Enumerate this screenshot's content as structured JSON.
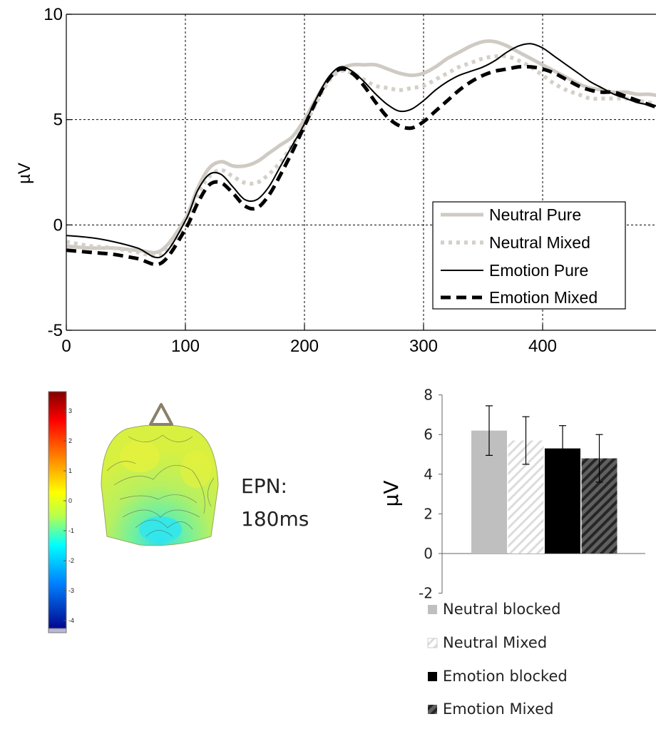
{
  "chart_data": [
    {
      "type": "line",
      "title": "",
      "xlabel": "",
      "ylabel": "µV",
      "xlim": [
        0,
        500
      ],
      "ylim": [
        -5,
        10
      ],
      "xticks": [
        0,
        100,
        200,
        300,
        400
      ],
      "yticks": [
        -5,
        0,
        5,
        10
      ],
      "grid": true,
      "legend_position": "bottom-right",
      "series": [
        {
          "name": "Neutral Pure",
          "color": "#cfcac3",
          "style": "thick-solid",
          "x": [
            0,
            20,
            40,
            60,
            80,
            100,
            110,
            120,
            130,
            140,
            150,
            160,
            170,
            180,
            190,
            200,
            210,
            220,
            230,
            240,
            250,
            260,
            270,
            280,
            290,
            300,
            310,
            320,
            330,
            340,
            350,
            360,
            370,
            380,
            390,
            400,
            410,
            420,
            430,
            440,
            450,
            460,
            470,
            480,
            490,
            500
          ],
          "y": [
            -1.0,
            -1.1,
            -1.1,
            -1.2,
            -1.2,
            0.3,
            1.7,
            2.7,
            3.0,
            2.8,
            2.8,
            3.0,
            3.4,
            3.8,
            4.2,
            5.0,
            6.0,
            6.9,
            7.4,
            7.6,
            7.6,
            7.6,
            7.4,
            7.2,
            7.1,
            7.2,
            7.5,
            7.9,
            8.2,
            8.5,
            8.7,
            8.7,
            8.5,
            8.2,
            7.9,
            7.6,
            7.3,
            7.0,
            6.7,
            6.5,
            6.4,
            6.3,
            6.3,
            6.2,
            6.2,
            6.1
          ]
        },
        {
          "name": "Neutral Mixed",
          "color": "#d4d0c9",
          "style": "thick-dotted",
          "x": [
            0,
            20,
            40,
            60,
            80,
            100,
            110,
            120,
            130,
            140,
            150,
            160,
            170,
            180,
            190,
            200,
            210,
            220,
            230,
            240,
            250,
            260,
            270,
            280,
            290,
            300,
            310,
            320,
            330,
            340,
            350,
            360,
            370,
            380,
            390,
            400,
            410,
            420,
            430,
            440,
            450,
            460,
            470,
            480,
            490,
            500
          ],
          "y": [
            -0.8,
            -1.0,
            -1.1,
            -1.3,
            -1.4,
            0.0,
            1.4,
            2.3,
            2.6,
            2.3,
            2.0,
            2.0,
            2.4,
            3.0,
            3.8,
            4.7,
            5.8,
            6.8,
            7.3,
            7.2,
            6.9,
            6.6,
            6.5,
            6.4,
            6.5,
            6.6,
            6.9,
            7.2,
            7.5,
            7.7,
            7.9,
            8.0,
            8.0,
            7.8,
            7.5,
            7.1,
            6.7,
            6.4,
            6.2,
            6.0,
            6.0,
            6.0,
            6.0,
            5.9,
            5.8,
            5.7
          ]
        },
        {
          "name": "Emotion Pure",
          "color": "#000000",
          "style": "thin-solid",
          "x": [
            0,
            20,
            40,
            60,
            80,
            100,
            110,
            120,
            130,
            140,
            150,
            160,
            170,
            180,
            190,
            200,
            210,
            220,
            230,
            240,
            250,
            260,
            270,
            280,
            290,
            300,
            310,
            320,
            330,
            340,
            350,
            360,
            370,
            380,
            390,
            400,
            410,
            420,
            430,
            440,
            450,
            460,
            470,
            480,
            490,
            500
          ],
          "y": [
            -0.5,
            -0.6,
            -0.8,
            -1.1,
            -1.5,
            0.2,
            1.6,
            2.4,
            2.4,
            1.8,
            1.2,
            1.2,
            1.8,
            2.8,
            3.8,
            4.8,
            6.0,
            7.0,
            7.5,
            7.3,
            6.8,
            6.2,
            5.7,
            5.4,
            5.5,
            5.9,
            6.4,
            6.8,
            7.1,
            7.3,
            7.5,
            7.8,
            8.2,
            8.5,
            8.6,
            8.4,
            8.0,
            7.6,
            7.2,
            6.8,
            6.5,
            6.2,
            6.0,
            5.8,
            5.7,
            5.6
          ]
        },
        {
          "name": "Emotion Mixed",
          "color": "#000000",
          "style": "thick-dashed",
          "x": [
            0,
            20,
            40,
            60,
            80,
            100,
            110,
            120,
            130,
            140,
            150,
            160,
            170,
            180,
            190,
            200,
            210,
            220,
            230,
            240,
            250,
            260,
            270,
            280,
            290,
            300,
            310,
            320,
            330,
            340,
            350,
            360,
            370,
            380,
            390,
            400,
            410,
            420,
            430,
            440,
            450,
            460,
            470,
            480,
            490,
            500
          ],
          "y": [
            -1.2,
            -1.3,
            -1.4,
            -1.6,
            -1.8,
            -0.2,
            1.0,
            1.9,
            2.0,
            1.5,
            0.9,
            0.8,
            1.4,
            2.4,
            3.5,
            4.7,
            5.9,
            6.9,
            7.4,
            7.2,
            6.6,
            5.8,
            5.1,
            4.7,
            4.6,
            4.9,
            5.4,
            5.9,
            6.4,
            6.8,
            7.1,
            7.3,
            7.4,
            7.5,
            7.5,
            7.4,
            7.2,
            6.9,
            6.6,
            6.4,
            6.3,
            6.3,
            6.1,
            5.9,
            5.7,
            5.5
          ]
        }
      ]
    },
    {
      "type": "bar",
      "title": "",
      "xlabel": "",
      "ylabel": "µV",
      "ylim": [
        -2,
        8
      ],
      "yticks": [
        -2,
        0,
        2,
        4,
        6,
        8
      ],
      "grid": false,
      "legend_position": "bottom",
      "categories": [
        "Neutral blocked",
        "Neutral Mixed",
        "Emotion blocked",
        "Emotion Mixed"
      ],
      "values": [
        6.2,
        5.7,
        5.3,
        4.8
      ],
      "errors": [
        1.25,
        1.2,
        1.15,
        1.2
      ],
      "colors": [
        "#bfbfbf",
        "#ececec",
        "#000000",
        "#404040"
      ],
      "patterns": [
        "solid",
        "light-hatch",
        "solid",
        "dark-hatch"
      ]
    }
  ],
  "topomap": {
    "label_line1": "EPN:",
    "label_line2": "180ms",
    "colorbar_ticks": [
      "3",
      "2",
      "1",
      "0",
      "-1",
      "-2",
      "-3",
      "-4"
    ]
  }
}
